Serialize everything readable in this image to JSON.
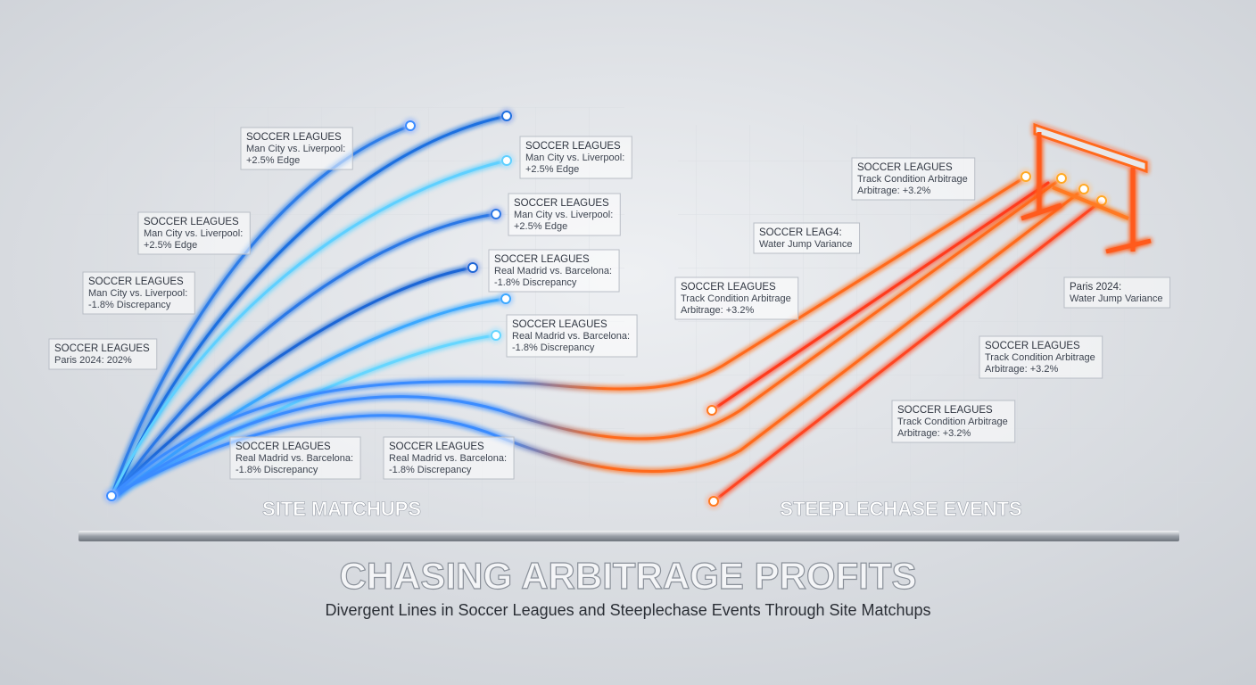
{
  "labels": [
    {
      "lines": [
        "SOCCER LEAGUES",
        "Man City vs. Liverpool:",
        "+2.5% Edge"
      ]
    },
    {
      "lines": [
        "SOCCER LEAGUES",
        "Man City vs. Liverpool:",
        "+2.5% Edge"
      ]
    },
    {
      "lines": [
        "SOCCER LEAGUES",
        "Man City vs. Liverpool:",
        "+2.5% Edge"
      ]
    },
    {
      "lines": [
        "SOCCER LEAGUES",
        "Man City vs. Liverpool:",
        "+2.5% Edge"
      ]
    },
    {
      "lines": [
        "SOCCER LEAGUES",
        "Real Madrid vs. Barcelona:",
        "-1.8% Discrepancy"
      ]
    },
    {
      "lines": [
        "SOCCER LEAGUES",
        "Man City vs. Liverpool:",
        "-1.8% Discrepancy"
      ]
    },
    {
      "lines": [
        "SOCCER LEAGUES",
        "Real Madrid vs. Barcelona:",
        "-1.8% Discrepancy"
      ]
    },
    {
      "lines": [
        "SOCCER LEAGUES",
        "Paris 2024: 202%"
      ]
    },
    {
      "lines": [
        "SOCCER LEAGUES",
        "Real Madrid vs. Barcelona:",
        "-1.8% Discrepancy"
      ]
    },
    {
      "lines": [
        "SOCCER LEAGUES",
        "Real Madrid vs. Barcelona:",
        "-1.8% Discrepancy"
      ]
    },
    {
      "lines": [
        "SOCCER LEAGUES",
        "Track Condition Arbitrage",
        "Arbitrage: +3.2%"
      ]
    },
    {
      "lines": [
        "SOCCER LEAG4:",
        "Water Jump Variance"
      ]
    },
    {
      "lines": [
        "SOCCER LEAGUES",
        "Track Condition Arbitrage",
        "Arbitrage: +3.2%"
      ]
    },
    {
      "lines": [
        "Paris 2024:",
        "Water Jump Variance"
      ]
    },
    {
      "lines": [
        "SOCCER LEAGUES",
        "Track Condition Arbitrage",
        "Arbitrage: +3.2%"
      ]
    },
    {
      "lines": [
        "SOCCER LEAGUES",
        "Track Condition Arbitrage",
        "Arbitrage: +3.2%"
      ]
    }
  ],
  "sections": [
    "SITE MATCHUPS",
    "STEEPLECHASE EVENTS"
  ],
  "title": "CHASING ARBITRAGE PROFITS",
  "subtitle": "Divergent Lines in Soccer Leagues and Steeplechase Events Through Site Matchups"
}
